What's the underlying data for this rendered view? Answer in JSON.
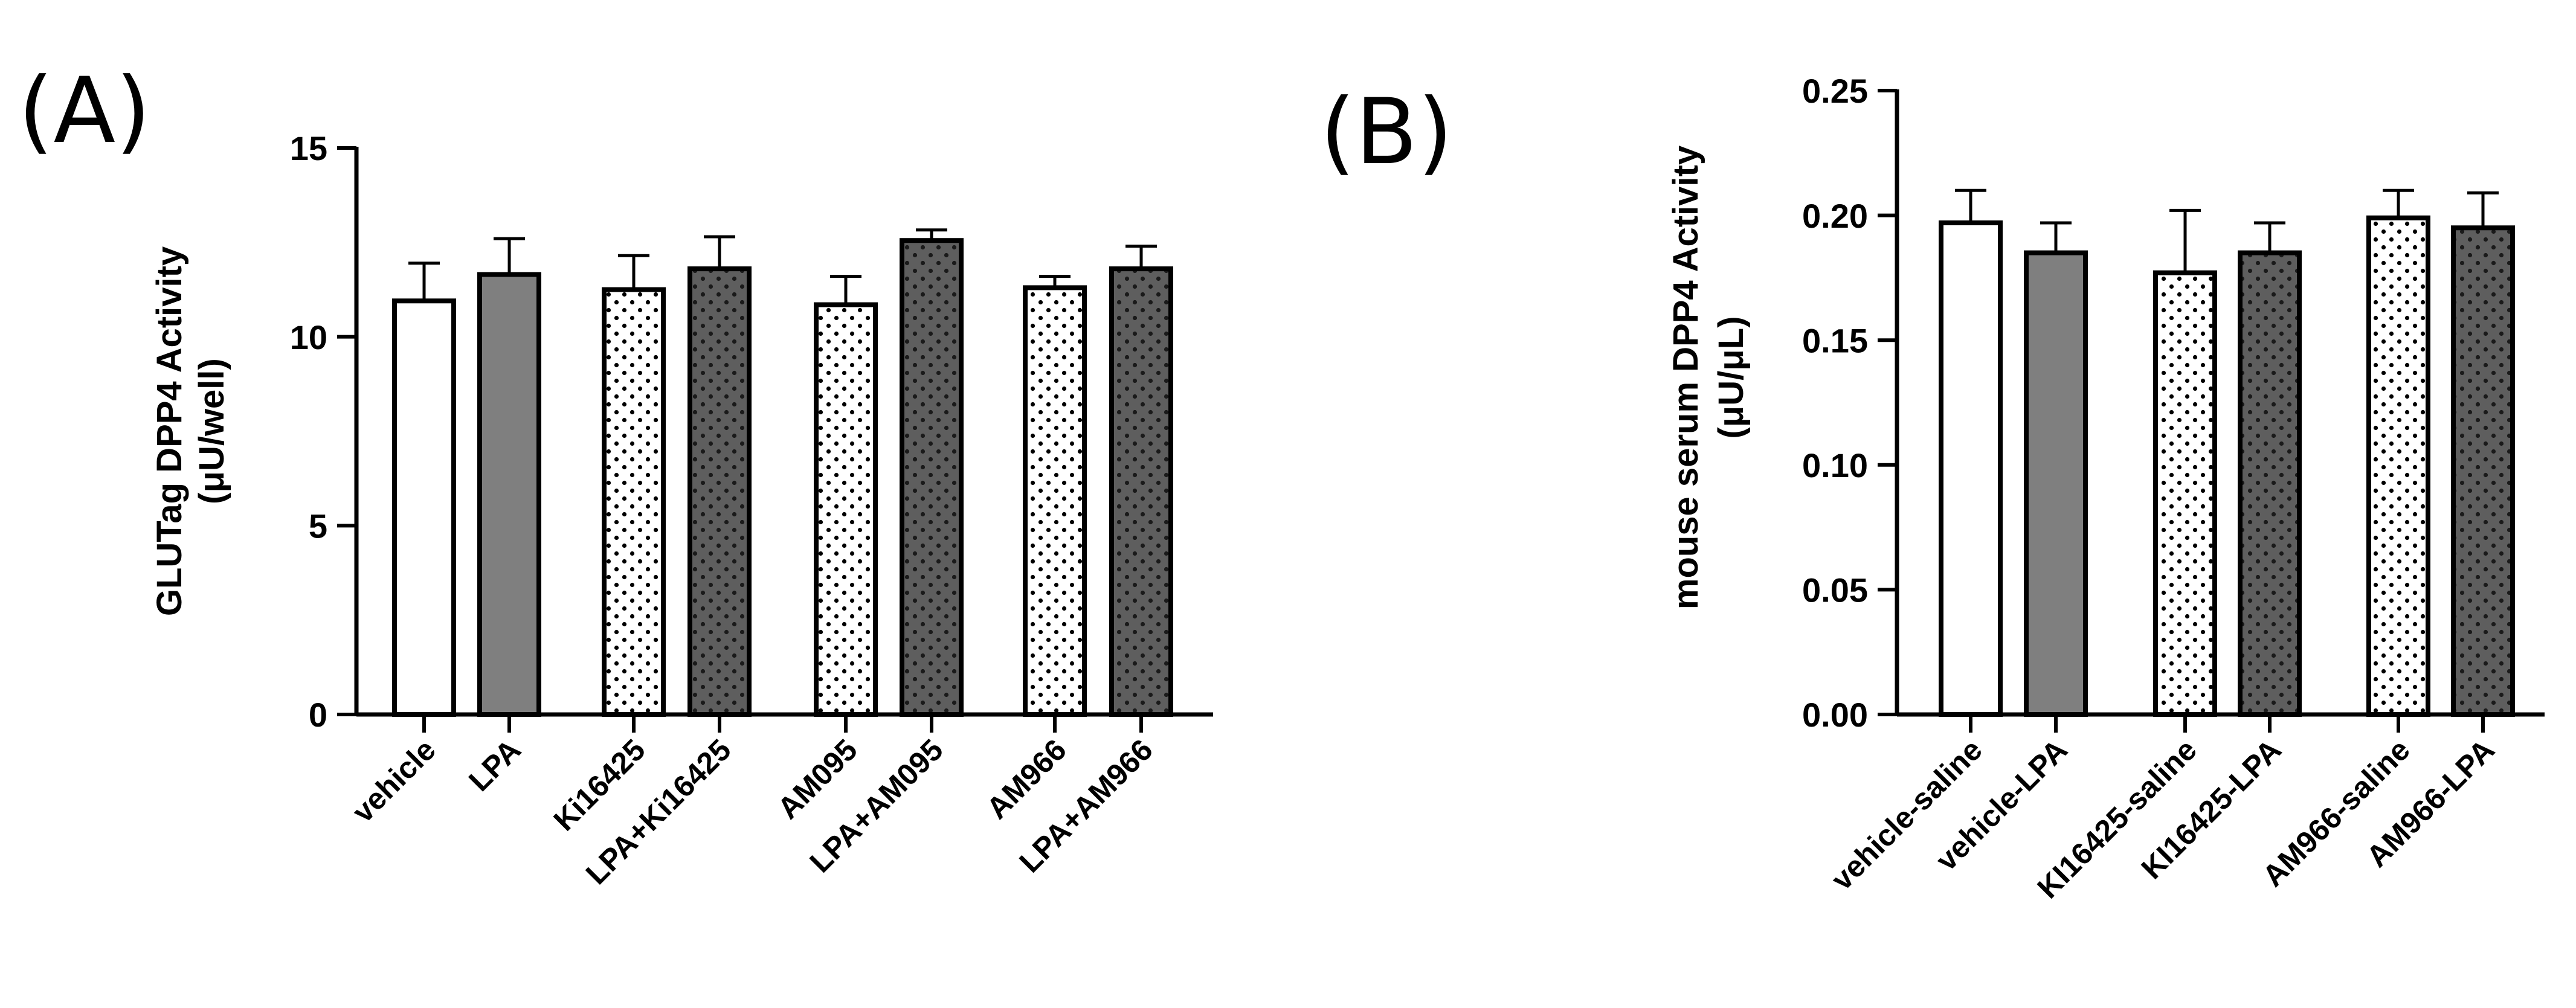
{
  "panels": {
    "a": {
      "letter": "(A)"
    },
    "b": {
      "letter": "(B)"
    }
  },
  "chart_data": [
    {
      "type": "bar",
      "panel": "(A)",
      "title": "",
      "ylabel_line1": "GLUTag DPP4 Activity",
      "ylabel_line2": "(μU/well)",
      "ylim": [
        0,
        15
      ],
      "yticks": [
        0,
        5,
        10,
        15
      ],
      "ytick_labels": [
        "0",
        "5",
        "10",
        "15"
      ],
      "grid": false,
      "categories": [
        "vehicle",
        "LPA",
        "Ki16425",
        "LPA+Ki16425",
        "AM095",
        "LPA+AM095",
        "AM966",
        "LPA+AM966"
      ],
      "values": [
        10.95,
        11.65,
        11.25,
        11.8,
        10.85,
        12.55,
        11.3,
        11.8
      ],
      "errors": [
        1.0,
        0.95,
        0.9,
        0.85,
        0.75,
        0.28,
        0.3,
        0.6
      ],
      "fills": [
        "white",
        "gray",
        "dots-light",
        "dots-dark",
        "dots-light",
        "dots-dark",
        "dots-light",
        "dots-dark"
      ],
      "colors": {
        "bar_outline": "#000000",
        "gray": "#7f7f7f",
        "dark": "#5a5a5a"
      }
    },
    {
      "type": "bar",
      "panel": "(B)",
      "title": "",
      "ylabel_line1": "mouse serum DPP4 Activity",
      "ylabel_line2": "(μU/μL)",
      "ylim": [
        0,
        0.25
      ],
      "yticks": [
        0,
        0.05,
        0.1,
        0.15,
        0.2,
        0.25
      ],
      "ytick_labels": [
        "0.00",
        "0.05",
        "0.10",
        "0.15",
        "0.20",
        "0.25"
      ],
      "grid": false,
      "categories": [
        "vehicle-saline",
        "vehicle-LPA",
        "KI16425-saline",
        "KI16425-LPA",
        "AM966-saline",
        "AM966-LPA"
      ],
      "values": [
        0.197,
        0.185,
        0.177,
        0.185,
        0.199,
        0.195
      ],
      "errors": [
        0.013,
        0.012,
        0.025,
        0.012,
        0.011,
        0.014
      ],
      "fills": [
        "white",
        "gray",
        "dots-light",
        "dots-dark",
        "dots-light",
        "dots-dark"
      ],
      "colors": {
        "bar_outline": "#000000",
        "gray": "#7f7f7f",
        "dark": "#5a5a5a"
      }
    }
  ]
}
